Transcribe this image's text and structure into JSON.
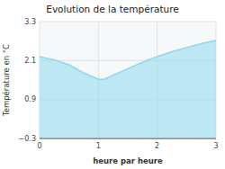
{
  "chart_data": {
    "type": "area",
    "title": "Evolution de la température",
    "xlabel": "heure par heure",
    "ylabel": "Température en °C",
    "x": [
      0,
      0.25,
      0.5,
      0.75,
      1.0,
      1.1,
      1.25,
      1.5,
      1.75,
      2.0,
      2.25,
      2.5,
      2.75,
      3.0
    ],
    "values": [
      2.22,
      2.12,
      1.97,
      1.72,
      1.52,
      1.52,
      1.65,
      1.85,
      2.05,
      2.22,
      2.37,
      2.5,
      2.62,
      2.72
    ],
    "xlim": [
      0,
      3
    ],
    "ylim": [
      -0.3,
      3.3
    ],
    "xticks": [
      0,
      1,
      2,
      3
    ],
    "yticks": [
      {
        "value": -0.3,
        "label": "−0.3"
      },
      0.9,
      2.1,
      3.3
    ],
    "color": "#8dd8ed",
    "grid": true
  }
}
